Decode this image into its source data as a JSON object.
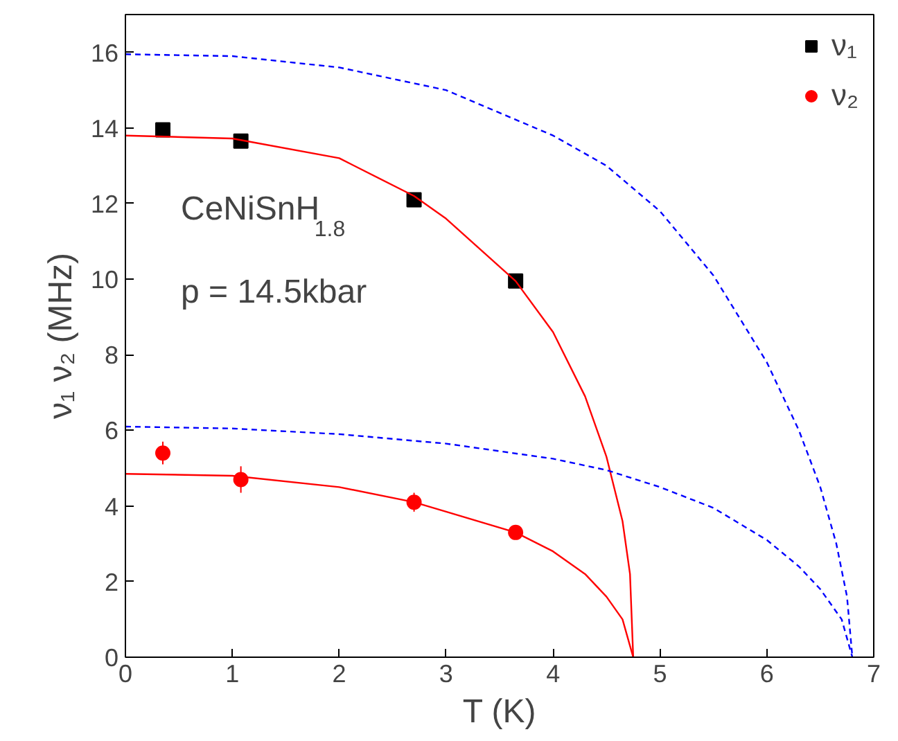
{
  "chart_data": {
    "type": "scatter",
    "xlabel": "T (K)",
    "ylabel": "ν₁ ν₂ (MHz)",
    "xlim": [
      0,
      7
    ],
    "ylim": [
      0,
      17
    ],
    "xticks": [
      0,
      1,
      2,
      3,
      4,
      5,
      6,
      7
    ],
    "yticks": [
      0,
      2,
      4,
      6,
      8,
      10,
      12,
      14,
      16
    ],
    "grid": false,
    "legend": "top right",
    "annotations": [
      "CeNiSnH$_{1.8}$",
      "p = 14.5kbar"
    ],
    "series": [
      {
        "name": "ν₁",
        "marker": "square",
        "color": "#000000",
        "x": [
          0.35,
          1.08,
          2.7,
          3.65
        ],
        "values": [
          13.95,
          13.65,
          12.1,
          9.95
        ]
      },
      {
        "name": "ν₂",
        "marker": "circle",
        "color": "#ff0000",
        "x": [
          0.35,
          1.08,
          2.7,
          3.65
        ],
        "values": [
          5.4,
          4.7,
          4.1,
          3.3
        ],
        "errors": [
          0.3,
          0.35,
          0.25,
          0.15
        ]
      },
      {
        "type": "line",
        "line_style": "solid",
        "color": "#ff0000",
        "x": [
          0,
          1.0,
          2.0,
          2.7,
          3.0,
          3.65,
          4.0,
          4.3,
          4.5,
          4.65,
          4.72,
          4.75
        ],
        "values": [
          13.8,
          13.72,
          13.2,
          12.2,
          11.6,
          9.95,
          8.6,
          6.9,
          5.3,
          3.6,
          2.2,
          0
        ]
      },
      {
        "type": "line",
        "line_style": "solid",
        "color": "#ff0000",
        "x": [
          0,
          1,
          2,
          2.7,
          3.0,
          3.65,
          4.0,
          4.3,
          4.5,
          4.65,
          4.75
        ],
        "values": [
          4.85,
          4.8,
          4.5,
          4.1,
          3.85,
          3.3,
          2.8,
          2.2,
          1.6,
          1.0,
          0
        ]
      },
      {
        "type": "line",
        "line_style": "dashed",
        "color": "#0000ff",
        "x": [
          0,
          1,
          2,
          3,
          4,
          4.5,
          5,
          5.5,
          6,
          6.3,
          6.5,
          6.65,
          6.75,
          6.8
        ],
        "values": [
          15.95,
          15.9,
          15.6,
          15.0,
          13.8,
          13.0,
          11.8,
          10.1,
          7.8,
          6.0,
          4.5,
          3.0,
          1.6,
          0
        ]
      },
      {
        "type": "line",
        "line_style": "dashed",
        "color": "#0000ff",
        "x": [
          0,
          1,
          2,
          3,
          4,
          4.5,
          5,
          5.5,
          6,
          6.3,
          6.5,
          6.7,
          6.8
        ],
        "values": [
          6.1,
          6.05,
          5.9,
          5.65,
          5.25,
          4.95,
          4.5,
          3.95,
          3.1,
          2.4,
          1.8,
          1.0,
          0
        ]
      }
    ]
  }
}
